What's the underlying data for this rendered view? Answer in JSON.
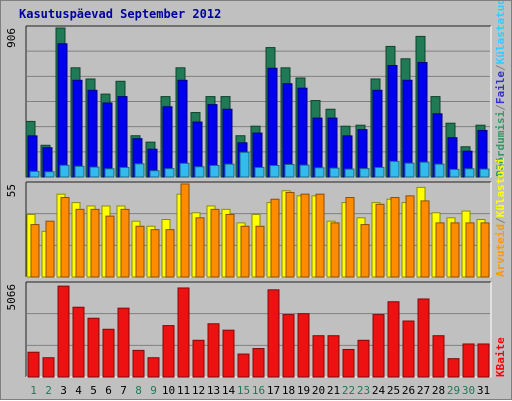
{
  "title": "Kasutuspäevad September 2012",
  "chart_data": [
    {
      "type": "bar",
      "panel": "top",
      "ymax_label": "906",
      "ylim": [
        0,
        906
      ],
      "legend": [
        {
          "text": "Pöördumisi",
          "color": "#339966"
        },
        {
          "text": "/",
          "color": "#808080"
        },
        {
          "text": "Faile",
          "color": "#3333cc"
        },
        {
          "text": "/",
          "color": "#808080"
        },
        {
          "text": "Külastatud lehti",
          "color": "#33ccff"
        }
      ],
      "categories": [
        "1",
        "2",
        "3",
        "4",
        "5",
        "6",
        "7",
        "8",
        "9",
        "10",
        "11",
        "12",
        "13",
        "14",
        "15",
        "16",
        "17",
        "18",
        "19",
        "20",
        "21",
        "22",
        "23",
        "24",
        "25",
        "26",
        "27",
        "28",
        "29",
        "30",
        "31"
      ],
      "series": [
        {
          "name": "Pöördumisi",
          "color": "#1f7a55",
          "values": [
            338,
            193,
            906,
            664,
            596,
            504,
            582,
            251,
            212,
            489,
            664,
            392,
            489,
            489,
            251,
            309,
            787,
            664,
            602,
            465,
            412,
            309,
            315,
            596,
            794,
            719,
            855,
            489,
            327,
            184,
            315
          ]
        },
        {
          "name": "Faile",
          "color": "#0000ee",
          "values": [
            250,
            178,
            810,
            588,
            527,
            450,
            489,
            233,
            169,
            427,
            588,
            334,
            440,
            412,
            208,
            267,
            661,
            567,
            540,
            358,
            358,
            250,
            288,
            527,
            678,
            588,
            696,
            384,
            239,
            157,
            283
          ]
        },
        {
          "name": "Külastatud lehti",
          "color": "#33bbee",
          "values": [
            34,
            32,
            71,
            65,
            60,
            50,
            58,
            80,
            38,
            51,
            83,
            62,
            70,
            78,
            150,
            58,
            70,
            76,
            72,
            56,
            54,
            48,
            51,
            58,
            95,
            84,
            90,
            78,
            46,
            50,
            48
          ]
        }
      ]
    },
    {
      "type": "bar",
      "panel": "middle",
      "ymax_label": "55",
      "ylim": [
        0,
        55
      ],
      "legend": [
        {
          "text": "Arvuteid",
          "color": "#ff9900"
        },
        {
          "text": "/",
          "color": "#808080"
        },
        {
          "text": "Külastusi",
          "color": "#ffff00"
        }
      ],
      "series": [
        {
          "name": "Külastusi",
          "color": "#ffff00",
          "values": [
            37,
            27,
            49,
            44,
            42,
            42,
            42,
            33,
            30,
            34,
            49,
            38,
            42,
            40,
            32,
            37,
            44,
            51,
            48,
            48,
            33,
            44,
            35,
            44,
            46,
            44,
            53,
            38,
            35,
            39,
            34
          ]
        },
        {
          "name": "Arvuteid",
          "color": "#ff8c00",
          "values": [
            31,
            33,
            47,
            40,
            40,
            36,
            40,
            30,
            28,
            28,
            55,
            35,
            40,
            37,
            30,
            30,
            46,
            50,
            49,
            49,
            32,
            47,
            31,
            43,
            47,
            48,
            45,
            32,
            32,
            32,
            32
          ]
        }
      ]
    },
    {
      "type": "bar",
      "panel": "bottom",
      "ymax_label": "5066",
      "ylim": [
        0,
        5066
      ],
      "legend": [
        {
          "text": "KBaite",
          "color": "#ff0000"
        }
      ],
      "series": [
        {
          "name": "KBaite",
          "color": "#ee1111",
          "values": [
            1350,
            1050,
            4950,
            3800,
            3200,
            2600,
            3750,
            1450,
            1050,
            2800,
            4850,
            2000,
            2900,
            2550,
            1250,
            1550,
            4750,
            3400,
            3450,
            2250,
            2250,
            1500,
            2000,
            3400,
            4100,
            3050,
            4250,
            2250,
            1000,
            1800,
            1800
          ]
        }
      ]
    }
  ],
  "x_axis": {
    "labels": [
      "1",
      "2",
      "3",
      "4",
      "5",
      "6",
      "7",
      "8",
      "9",
      "10",
      "11",
      "12",
      "13",
      "14",
      "15",
      "16",
      "17",
      "18",
      "19",
      "20",
      "21",
      "22",
      "23",
      "24",
      "25",
      "26",
      "27",
      "28",
      "29",
      "30",
      "31"
    ],
    "weekend_days": [
      "1",
      "2",
      "8",
      "9",
      "15",
      "16",
      "22",
      "23",
      "29",
      "30"
    ],
    "weekday_color": "#000000",
    "weekend_color": "#1d7a55"
  }
}
